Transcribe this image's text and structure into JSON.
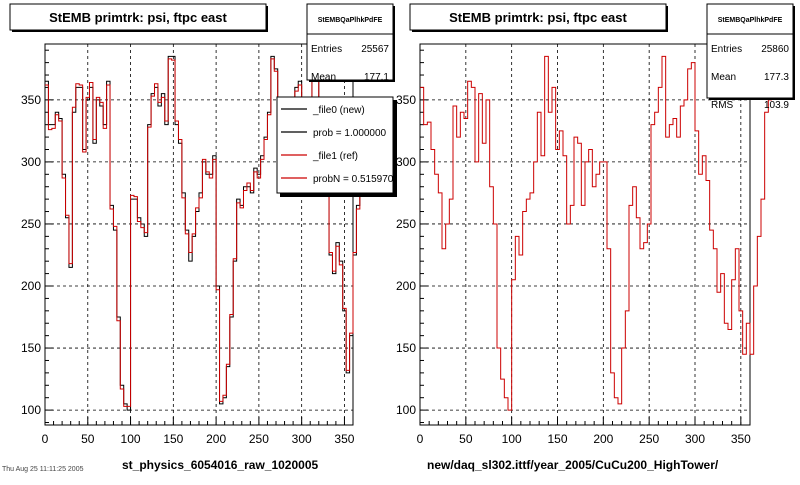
{
  "panels": [
    {
      "title": "StEMB primtrk: psi, ftpc east",
      "bottom_label": "st_physics_6054016_raw_1020005",
      "stats": {
        "name": "StEMBQaPlhkPdFE",
        "rows": [
          {
            "label": "Entries",
            "value": "25567"
          },
          {
            "label": "Mean",
            "value": "177.1"
          }
        ]
      },
      "legend": [
        {
          "label": "_file0 (new)",
          "color": "#000000"
        },
        {
          "label": "prob = 1.000000",
          "color": "#000000"
        },
        {
          "label": "_file1 (ref)",
          "color": "#cc0000"
        },
        {
          "label": "probN = 0.515970",
          "color": "#cc0000"
        }
      ]
    },
    {
      "title": "StEMB primtrk: psi, ftpc east",
      "bottom_label": "new/daq_sl302.ittf/year_2005/CuCu200_HighTower/",
      "stats": {
        "name": "StEMBQaPlhkPdFE",
        "rows": [
          {
            "label": "Entries",
            "value": "25860"
          },
          {
            "label": "Mean",
            "value": "177.3"
          },
          {
            "label": "RMS",
            "value": "103.9"
          }
        ]
      }
    }
  ],
  "timestamp": "Thu Aug 25 11:11:25 2005",
  "chart_data": [
    {
      "type": "line",
      "title": "StEMB primtrk: psi, ftpc east",
      "xlabel": "st_physics_6054016_raw_1020005",
      "ylabel": "",
      "xlim": [
        0,
        360
      ],
      "ylim": [
        88,
        395
      ],
      "x_ticks": [
        0,
        50,
        100,
        150,
        200,
        250,
        300,
        350
      ],
      "y_ticks": [
        100,
        150,
        200,
        250,
        300,
        350
      ],
      "grid": true,
      "step": true,
      "bin_width": 4,
      "series": [
        {
          "name": "_file0 (new)",
          "color": "#000000",
          "values": [
            365,
            330,
            330,
            340,
            335,
            290,
            255,
            215,
            340,
            360,
            360,
            310,
            350,
            360,
            315,
            350,
            345,
            330,
            365,
            265,
            245,
            175,
            120,
            105,
            100,
            270,
            270,
            255,
            250,
            240,
            330,
            355,
            360,
            345,
            355,
            330,
            385,
            385,
            330,
            315,
            275,
            245,
            220,
            240,
            260,
            275,
            300,
            290,
            290,
            305,
            200,
            105,
            110,
            135,
            175,
            220,
            270,
            265,
            280,
            280,
            275,
            295,
            290,
            305,
            320,
            340,
            385,
            375,
            335,
            320,
            315,
            325,
            345,
            360,
            365,
            350,
            340,
            335,
            380,
            385,
            335,
            325,
            290,
            225,
            210,
            235,
            220,
            180,
            130,
            160,
            225,
            265,
            305,
            320,
            340,
            350
          ]
        },
        {
          "name": "_file1 (ref)",
          "color": "#cc0000",
          "values": [
            362,
            326,
            327,
            338,
            333,
            287,
            257,
            218,
            344,
            363,
            362,
            308,
            352,
            364,
            318,
            352,
            348,
            327,
            362,
            262,
            248,
            172,
            117,
            103,
            103,
            273,
            272,
            252,
            247,
            243,
            328,
            353,
            363,
            348,
            352,
            333,
            383,
            382,
            333,
            318,
            271,
            242,
            227,
            242,
            263,
            271,
            302,
            292,
            287,
            302,
            197,
            107,
            112,
            137,
            177,
            222,
            267,
            263,
            277,
            283,
            277,
            292,
            287,
            302,
            318,
            338,
            383,
            373,
            338,
            318,
            317,
            322,
            342,
            357,
            362,
            347,
            337,
            333,
            377,
            382,
            333,
            322,
            287,
            227,
            212,
            232,
            217,
            182,
            132,
            162,
            227,
            262,
            302,
            317,
            337,
            347
          ]
        }
      ]
    },
    {
      "type": "line",
      "title": "StEMB primtrk: psi, ftpc east",
      "xlabel": "new/daq_sl302.ittf/year_2005/CuCu200_HighTower/",
      "ylabel": "",
      "xlim": [
        0,
        360
      ],
      "ylim": [
        88,
        395
      ],
      "x_ticks": [
        0,
        50,
        100,
        150,
        200,
        250,
        300,
        350
      ],
      "y_ticks": [
        100,
        150,
        200,
        250,
        300,
        350
      ],
      "grid": true,
      "step": true,
      "bin_width": 4,
      "series": [
        {
          "name": "",
          "color": "#cc0000",
          "values": [
            360,
            330,
            332,
            310,
            290,
            275,
            230,
            250,
            270,
            345,
            320,
            340,
            335,
            365,
            360,
            300,
            355,
            315,
            350,
            280,
            250,
            150,
            125,
            110,
            100,
            205,
            240,
            225,
            260,
            270,
            275,
            300,
            340,
            305,
            385,
            340,
            360,
            310,
            325,
            305,
            250,
            265,
            320,
            315,
            265,
            300,
            310,
            280,
            290,
            300,
            300,
            230,
            130,
            110,
            105,
            150,
            180,
            265,
            280,
            255,
            230,
            235,
            250,
            330,
            340,
            360,
            385,
            320,
            330,
            335,
            320,
            345,
            350,
            375,
            380,
            325,
            290,
            305,
            285,
            245,
            230,
            195,
            210,
            170,
            165,
            205,
            230,
            180,
            145,
            170,
            145,
            200,
            240,
            270,
            340,
            350
          ]
        }
      ]
    }
  ]
}
